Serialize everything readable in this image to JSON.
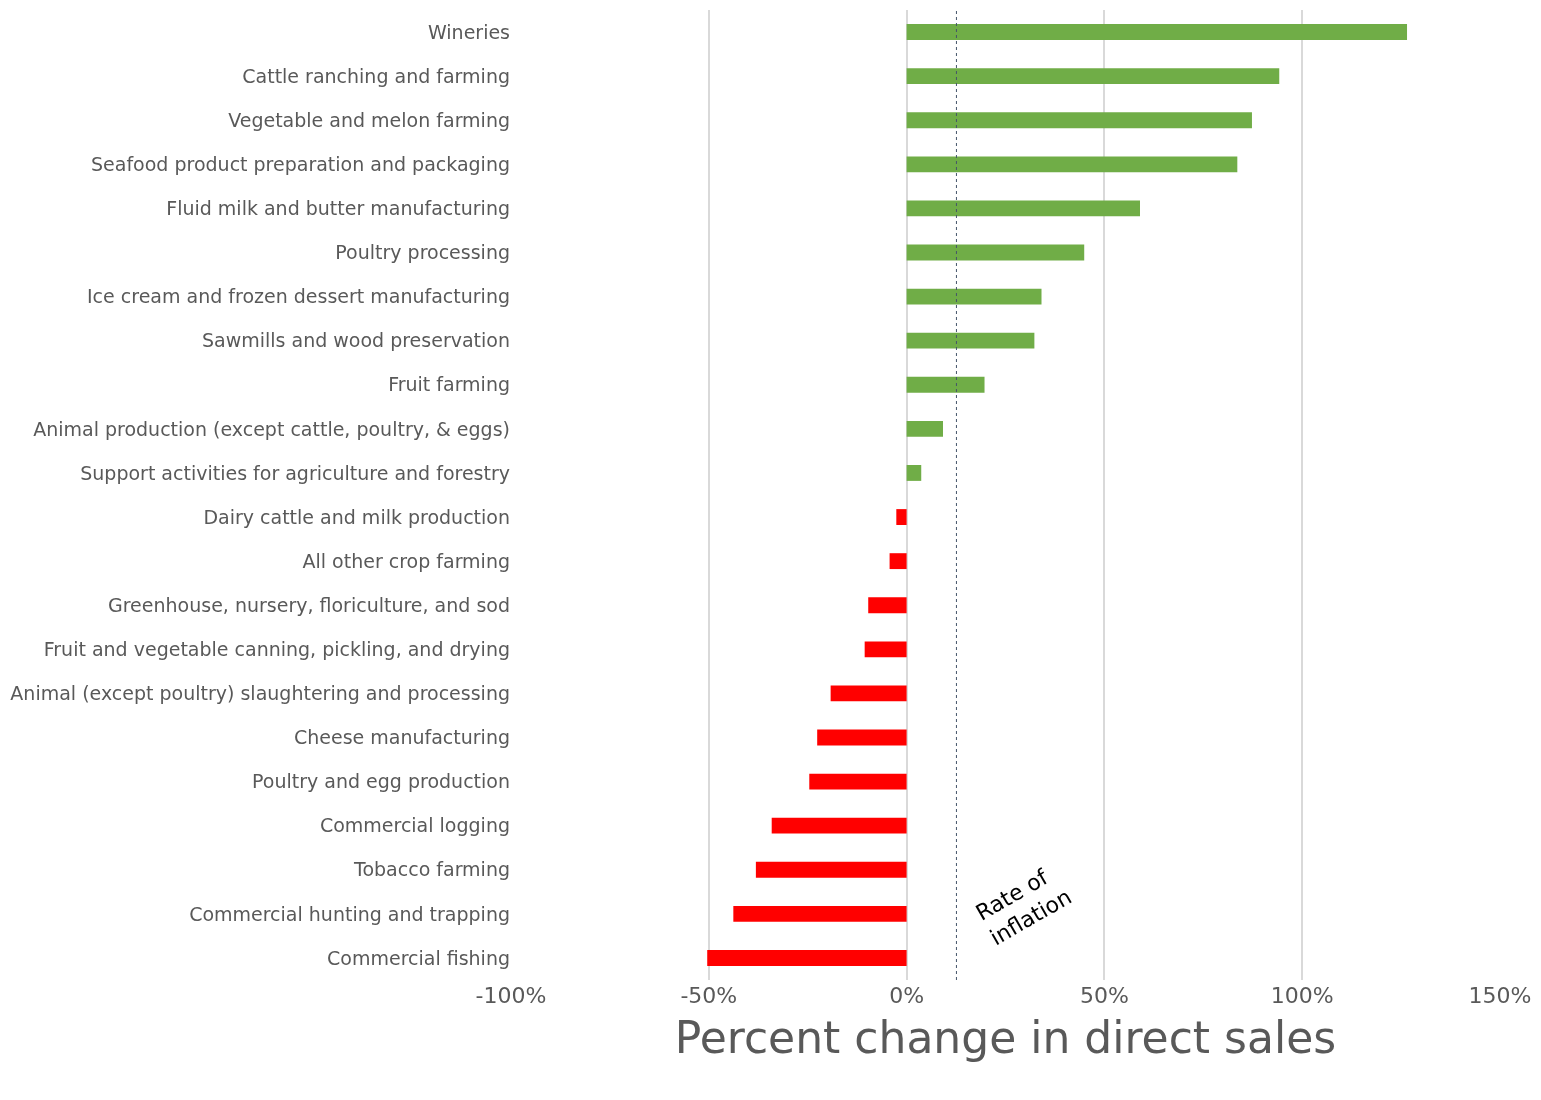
{
  "chart_data": {
    "type": "bar",
    "orientation": "horizontal",
    "xlabel": "Percent change in direct sales",
    "categories": [
      "Wineries",
      "Cattle ranching and farming",
      "Vegetable and melon farming",
      "Seafood product preparation and packaging",
      "Fluid milk and butter manufacturing",
      "Poultry processing",
      "Ice cream and frozen dessert manufacturing",
      "Sawmills and wood preservation",
      "Fruit farming",
      "Animal production (except cattle, poultry, & eggs)",
      "Support activities for agriculture and forestry",
      "Dairy cattle and milk production",
      "All other crop farming",
      "Greenhouse, nursery, floriculture, and sod",
      "Fruit and vegetable canning, pickling, and drying",
      "Animal (except poultry) slaughtering and processing",
      "Cheese manufacturing",
      "Poultry and egg production",
      "Commercial logging",
      "Tobacco farming",
      "Commercial hunting and trapping",
      "Commercial fishing"
    ],
    "values": [
      126.5,
      94.2,
      87.3,
      83.6,
      59.0,
      44.9,
      34.1,
      32.3,
      19.7,
      9.2,
      3.7,
      -2.6,
      -4.3,
      -9.7,
      -10.6,
      -19.2,
      -22.6,
      -24.6,
      -34.1,
      -38.1,
      -43.8,
      -50.4
    ],
    "colors": [
      "#70ad47",
      "#70ad47",
      "#70ad47",
      "#70ad47",
      "#70ad47",
      "#70ad47",
      "#70ad47",
      "#70ad47",
      "#70ad47",
      "#70ad47",
      "#70ad47",
      "#ff0000",
      "#ff0000",
      "#ff0000",
      "#ff0000",
      "#ff0000",
      "#ff0000",
      "#ff0000",
      "#ff0000",
      "#ff0000",
      "#ff0000",
      "#ff0000"
    ],
    "xlim": [
      -100,
      150
    ],
    "xticks": [
      {
        "value": -100,
        "label": "-100%"
      },
      {
        "value": -50,
        "label": "-50%"
      },
      {
        "value": 0,
        "label": "0%"
      },
      {
        "value": 50,
        "label": "50%"
      },
      {
        "value": 100,
        "label": "100%"
      },
      {
        "value": 150,
        "label": "150%"
      }
    ],
    "grid": "x",
    "ref_lines": [
      {
        "axis": "x",
        "value": 12.6,
        "label": "Rate of\ninflation",
        "color": "#44546a",
        "line_style": "dotted"
      }
    ]
  }
}
